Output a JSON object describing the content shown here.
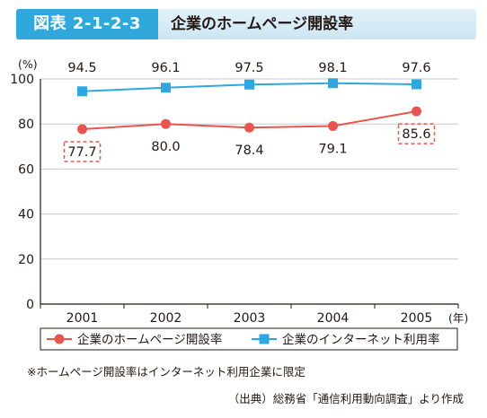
{
  "header": {
    "figure_label": "図表 2-1-2-3",
    "title": "企業のホームページ開設率"
  },
  "colors": {
    "badge": "#31a8dc",
    "series_homepage": "#e8554e",
    "series_internet": "#2ea7e0",
    "highlight_box": "#e8554e"
  },
  "chart_data": {
    "type": "line",
    "x": [
      "2001",
      "2002",
      "2003",
      "2004",
      "2005"
    ],
    "x_unit": "(年)",
    "y_unit": "(%)",
    "ylim": [
      0,
      100
    ],
    "yticks": [
      0,
      20,
      40,
      60,
      80,
      100
    ],
    "grid": true,
    "legend_position": "bottom",
    "series": [
      {
        "name": "企業のホームページ開設率",
        "values": [
          77.7,
          80.0,
          78.4,
          79.1,
          85.6
        ],
        "labels": [
          "77.7",
          "80.0",
          "78.4",
          "79.1",
          "85.6"
        ],
        "marker": "circle",
        "highlighted": [
          true,
          false,
          false,
          false,
          true
        ]
      },
      {
        "name": "企業のインターネット利用率",
        "values": [
          94.5,
          96.1,
          97.5,
          98.1,
          97.6
        ],
        "labels": [
          "94.5",
          "96.1",
          "97.5",
          "98.1",
          "97.6"
        ],
        "marker": "square"
      }
    ]
  },
  "note": "※ホームページ開設率はインターネット利用企業に限定",
  "source": "（出典）総務省「通信利用動向調査」より作成"
}
